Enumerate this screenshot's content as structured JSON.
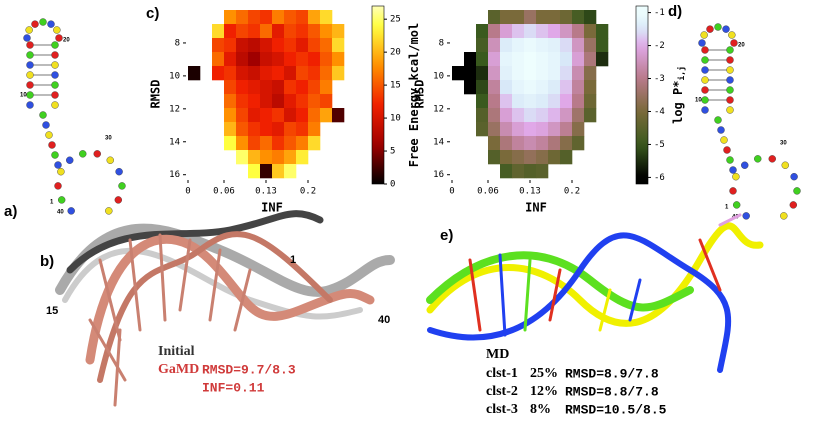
{
  "panels": {
    "a": {
      "label": "a)",
      "node_labels": [
        "20",
        "10",
        "30",
        "1",
        "40"
      ]
    },
    "b": {
      "label": "b)",
      "residue_labels": [
        "1",
        "15",
        "40"
      ],
      "initial": "Initial",
      "gamd": "GaMD",
      "rmsd": "RMSD=9.7/8.3",
      "inf": "INF=0.11"
    },
    "c": {
      "label": "c)"
    },
    "d": {
      "label": "d)",
      "node_labels": [
        "20",
        "10",
        "30",
        "1",
        "40"
      ]
    },
    "e": {
      "label": "e)",
      "title": "MD",
      "clusters": [
        [
          "clst-1",
          "25%",
          "RMSD=8.9/7.8"
        ],
        [
          "clst-2",
          "12%",
          "RMSD=8.8/7.8"
        ],
        [
          "clst-3",
          "8%",
          "RMSD=10.5/8.5"
        ]
      ]
    }
  },
  "chart_data": [
    {
      "type": "heatmap",
      "xlabel": "INF",
      "ylabel": "RMSD",
      "colorbar_label": "Free Energy kcal/mol",
      "xlim": [
        0,
        0.28
      ],
      "xticks": [
        0,
        0.06,
        0.13,
        0.2
      ],
      "ylim": [
        6,
        16.2
      ],
      "yticks": [
        8,
        10,
        12,
        14,
        16
      ],
      "colorbar_lim": [
        0,
        27
      ],
      "colorbar_ticks": [
        0,
        5,
        10,
        15,
        20,
        25
      ],
      "z": [
        [
          null,
          null,
          null,
          18,
          16,
          14,
          13,
          17,
          15,
          14,
          19,
          22,
          null,
          null
        ],
        [
          null,
          null,
          22,
          12,
          14,
          13,
          16,
          11,
          14,
          13,
          15,
          18,
          20,
          null
        ],
        [
          null,
          null,
          14,
          13,
          9,
          8,
          10,
          12,
          13,
          11,
          14,
          16,
          22,
          null
        ],
        [
          null,
          null,
          16,
          11,
          8,
          6,
          9,
          10,
          12,
          13,
          12,
          15,
          18,
          null
        ],
        [
          1,
          null,
          12,
          13,
          10,
          9,
          11,
          12,
          10,
          14,
          13,
          16,
          21,
          null
        ],
        [
          null,
          null,
          null,
          14,
          12,
          11,
          10,
          9,
          13,
          12,
          14,
          17,
          null,
          null
        ],
        [
          null,
          null,
          null,
          16,
          13,
          12,
          10,
          8,
          11,
          13,
          15,
          14,
          null,
          null
        ],
        [
          null,
          null,
          null,
          18,
          14,
          11,
          12,
          13,
          10,
          12,
          16,
          19,
          3,
          null
        ],
        [
          null,
          null,
          null,
          20,
          15,
          13,
          12,
          11,
          14,
          13,
          17,
          null,
          null,
          null
        ],
        [
          null,
          null,
          null,
          24,
          18,
          14,
          16,
          13,
          15,
          17,
          22,
          null,
          null,
          null
        ],
        [
          null,
          null,
          null,
          null,
          25,
          20,
          18,
          17,
          19,
          23,
          null,
          null,
          null,
          null
        ],
        [
          null,
          null,
          null,
          null,
          null,
          24,
          2,
          21,
          25,
          null,
          null,
          null,
          null,
          null
        ]
      ]
    },
    {
      "type": "heatmap",
      "xlabel": "INF",
      "ylabel": "RMSD",
      "colorbar_label": "log P*",
      "colorbar_label_sub": "i,j",
      "xlim": [
        0,
        0.28
      ],
      "xticks": [
        0,
        0.06,
        0.13,
        0.2
      ],
      "ylim": [
        6,
        16.2
      ],
      "yticks": [
        8,
        10,
        12,
        14,
        16
      ],
      "colorbar_lim": [
        -6.2,
        -0.8
      ],
      "colorbar_ticks": [
        -1,
        -2,
        -3,
        -4,
        -5,
        -6
      ],
      "z": [
        [
          null,
          null,
          null,
          -4.5,
          -4,
          -4,
          -3.5,
          -4,
          -4,
          -4.2,
          -4.8,
          -5.2,
          null,
          null
        ],
        [
          null,
          null,
          -5,
          -3,
          -2.2,
          -1.8,
          -1.6,
          -1.8,
          -2,
          -2.4,
          -3,
          -4,
          -5,
          null
        ],
        [
          null,
          null,
          -4.8,
          -2.5,
          -1.4,
          -1.2,
          -1.1,
          -1.2,
          -1.3,
          -1.6,
          -2.4,
          -3.5,
          -5,
          null
        ],
        [
          null,
          -6,
          -5,
          -2.2,
          -1.2,
          -1.1,
          -1,
          -1.1,
          -1.2,
          -1.5,
          -2.2,
          -3.2,
          -5.5,
          null
        ],
        [
          -6,
          -6,
          -5.5,
          -2.4,
          -1.3,
          -1.1,
          -1,
          -1.1,
          -1.2,
          -1.6,
          -2.6,
          -3.8,
          null,
          null
        ],
        [
          null,
          -6,
          -5.2,
          -2.8,
          -1.5,
          -1.2,
          -1.1,
          -1.2,
          -1.4,
          -1.8,
          -2.8,
          -4,
          null,
          null
        ],
        [
          null,
          null,
          -5,
          -3,
          -1.8,
          -1.4,
          -1.3,
          -1.4,
          -1.6,
          -2,
          -3,
          -4.2,
          null,
          null
        ],
        [
          null,
          null,
          -4.6,
          -3.2,
          -2.2,
          -1.8,
          -1.6,
          -1.7,
          -1.9,
          -2.4,
          -3.4,
          -4.5,
          null,
          null
        ],
        [
          null,
          null,
          -4.5,
          -3.5,
          -2.6,
          -2.2,
          -2,
          -2.1,
          -2.4,
          -2.9,
          -3.8,
          null,
          null,
          null
        ],
        [
          null,
          null,
          null,
          -4,
          -3.2,
          -2.8,
          -2.6,
          -2.8,
          -3.2,
          -3.8,
          -4.4,
          null,
          null,
          null
        ],
        [
          null,
          null,
          null,
          -4.6,
          -4,
          -3.8,
          -3.6,
          -3.8,
          -4.2,
          -4.6,
          null,
          null,
          null,
          null
        ],
        [
          null,
          null,
          null,
          null,
          -4.8,
          -4.4,
          -4.6,
          -4.5,
          null,
          null,
          null,
          null,
          null,
          null
        ]
      ]
    }
  ]
}
